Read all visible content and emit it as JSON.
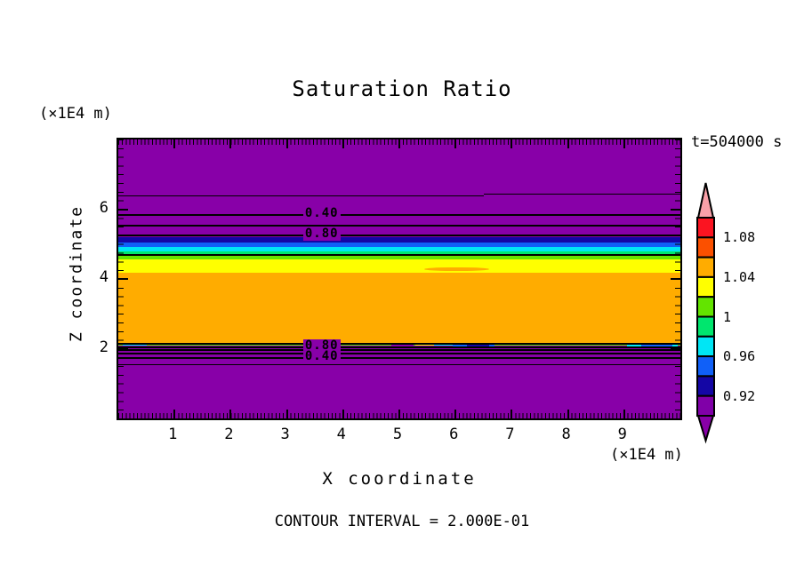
{
  "title": "Saturation Ratio",
  "annotations": {
    "time_label": "t=504000 s",
    "y_unit": "(×1E4 m)",
    "x_unit": "(×1E4 m)",
    "contour_note": "CONTOUR INTERVAL = 2.000E-01"
  },
  "axes": {
    "x_label": "X coordinate",
    "y_label": "Z coordinate",
    "x_ticks": [
      1,
      2,
      3,
      4,
      5,
      6,
      7,
      8,
      9
    ],
    "y_ticks": [
      2,
      4,
      6
    ]
  },
  "chart_data": {
    "type": "heatmap",
    "subtype": "filled-contour",
    "title": "Saturation Ratio",
    "xlabel": "X coordinate (×1E4 m)",
    "ylabel": "Z coordinate (×1E4 m)",
    "x_range": [
      0,
      10
    ],
    "z_range": [
      0,
      8
    ],
    "time": "t=504000 s",
    "contour_interval": 0.2,
    "colorbar_interval": 0.02,
    "bands": [
      {
        "color_name": "purple",
        "color": "#8800A8",
        "z_top": 8.0,
        "z_bottom": 5.2,
        "value": "<0.90"
      },
      {
        "color_name": "navy",
        "color": "#1406A5",
        "z_top": 5.2,
        "z_bottom": 5.05,
        "value": "0.92-0.94"
      },
      {
        "color_name": "blue",
        "color": "#1060F8",
        "z_top": 5.05,
        "z_bottom": 4.92,
        "value": "0.94-0.96"
      },
      {
        "color_name": "cyan",
        "color": "#00E6F5",
        "z_top": 4.92,
        "z_bottom": 4.78,
        "value": "0.96-0.98"
      },
      {
        "color_name": "spring-green",
        "color": "#00E66E",
        "z_top": 4.78,
        "z_bottom": 4.71,
        "value": "0.98-1.00"
      },
      {
        "color_name": "green-yellow",
        "color": "#63E400",
        "z_top": 4.71,
        "z_bottom": 4.55,
        "value": "1.00-1.02"
      },
      {
        "color_name": "yellow",
        "color": "#FFFF00",
        "z_top": 4.55,
        "z_bottom": 4.17,
        "value": "1.02-1.04"
      },
      {
        "color_name": "orange",
        "color": "#FFAC00",
        "z_top": 4.17,
        "z_bottom": 2.17,
        "value": "1.04-1.06"
      },
      {
        "color_name": "green-yellow",
        "color": "#63E400",
        "z_top": 2.17,
        "z_bottom": 2.08,
        "value": "1.00-1.02"
      },
      {
        "color_name": "purple",
        "color": "#8800A8",
        "z_top": 2.08,
        "z_bottom": 0.0,
        "value": "<0.90"
      }
    ],
    "patches": [
      {
        "color_name": "orange",
        "color": "#FFAC00",
        "x_from": 5.45,
        "x_to": 6.6,
        "z_top": 4.34,
        "z_bottom": 4.22,
        "round": true
      },
      {
        "color_name": "cyan",
        "color": "#00E6F5",
        "x_from": 0.08,
        "x_to": 0.5,
        "z_top": 2.16,
        "z_bottom": 2.09,
        "round": false
      },
      {
        "color_name": "yellow",
        "color": "#FFFF00",
        "x_from": 5.28,
        "x_to": 5.62,
        "z_top": 2.17,
        "z_bottom": 2.1,
        "round": false
      },
      {
        "color_name": "purple",
        "color": "#8800A8",
        "x_from": 4.85,
        "x_to": 5.25,
        "z_top": 2.13,
        "z_bottom": 2.1,
        "round": false
      },
      {
        "color_name": "cyan",
        "color": "#00E6F5",
        "x_from": 5.62,
        "x_to": 6.02,
        "z_top": 2.16,
        "z_bottom": 2.08,
        "round": false
      },
      {
        "color_name": "blue",
        "color": "#1060F8",
        "x_from": 5.95,
        "x_to": 6.7,
        "z_top": 2.14,
        "z_bottom": 2.06,
        "round": false
      },
      {
        "color_name": "navy",
        "color": "#1406A5",
        "x_from": 6.2,
        "x_to": 6.6,
        "z_top": 2.11,
        "z_bottom": 2.05,
        "round": false
      },
      {
        "color_name": "cyan",
        "color": "#00E6F5",
        "x_from": 9.05,
        "x_to": 9.95,
        "z_top": 2.15,
        "z_bottom": 2.07,
        "round": false
      },
      {
        "color_name": "blue",
        "color": "#1060F8",
        "x_from": 9.3,
        "x_to": 9.85,
        "z_top": 2.12,
        "z_bottom": 2.05,
        "round": false
      }
    ],
    "contour_lines": [
      {
        "value": 0.2,
        "z": 6.4,
        "x_from": 0.0,
        "x_to": 6.5,
        "weight": 1
      },
      {
        "value": 0.2,
        "z": 6.45,
        "x_from": 6.5,
        "x_to": 10.0,
        "weight": 1
      },
      {
        "value": 0.4,
        "z": 5.86,
        "x_from": 0.0,
        "x_to": 10.0,
        "weight": 2
      },
      {
        "value": 0.6,
        "z": 5.55,
        "x_from": 0.0,
        "x_to": 10.0,
        "weight": 2
      },
      {
        "value": 0.8,
        "z": 5.27,
        "x_from": 0.0,
        "x_to": 10.0,
        "weight": 2
      },
      {
        "value": 1.0,
        "z": 4.72,
        "x_from": 0.0,
        "x_to": 10.0,
        "weight": 2
      },
      {
        "value": 1.0,
        "z": 2.17,
        "x_from": 0.0,
        "x_to": 10.0,
        "weight": 2
      },
      {
        "value": 0.8,
        "z": 2.06,
        "x_from": 0.0,
        "x_to": 10.0,
        "weight": 2
      },
      {
        "value": 0.6,
        "z": 1.98,
        "x_from": 0.0,
        "x_to": 10.0,
        "weight": 2
      },
      {
        "value": 0.4,
        "z": 1.89,
        "x_from": 0.0,
        "x_to": 10.0,
        "weight": 2
      },
      {
        "value": 0.4,
        "z": 1.77,
        "x_from": 0.0,
        "x_to": 10.0,
        "weight": 2
      },
      {
        "value": 0.2,
        "z": 1.55,
        "x_from": 0.0,
        "x_to": 10.0,
        "weight": 1
      }
    ],
    "contour_labels": [
      {
        "text": "0.40",
        "x": 3.59,
        "z": 5.86
      },
      {
        "text": "0.80",
        "x": 3.59,
        "z": 5.27
      },
      {
        "text": "0.80",
        "x": 3.59,
        "z": 2.06
      },
      {
        "text": "0.40",
        "x": 3.59,
        "z": 1.77
      }
    ]
  },
  "colorbar": {
    "over_color": "#F9A0A8",
    "under_color": "#8800A8",
    "segments": [
      {
        "color_name": "red",
        "color": "#FB1421",
        "range": "1.08-1.10"
      },
      {
        "color_name": "orange-red",
        "color": "#FB5000",
        "range": "1.06-1.08"
      },
      {
        "color_name": "orange",
        "color": "#FFAC00",
        "range": "1.04-1.06"
      },
      {
        "color_name": "yellow",
        "color": "#FFFF00",
        "range": "1.02-1.04"
      },
      {
        "color_name": "green-yellow",
        "color": "#63E400",
        "range": "1.00-1.02"
      },
      {
        "color_name": "spring-green",
        "color": "#00E66E",
        "range": "0.98-1.00"
      },
      {
        "color_name": "cyan",
        "color": "#00E6F5",
        "range": "0.96-0.98"
      },
      {
        "color_name": "blue",
        "color": "#1060F8",
        "range": "0.94-0.96"
      },
      {
        "color_name": "navy",
        "color": "#1406A5",
        "range": "0.92-0.94"
      },
      {
        "color_name": "purple",
        "color": "#8000A8",
        "range": "0.90-0.92"
      }
    ],
    "labels": [
      {
        "text": "1.08",
        "after_segment": 1
      },
      {
        "text": "1.04",
        "after_segment": 3
      },
      {
        "text": "1",
        "after_segment": 5
      },
      {
        "text": "0.96",
        "after_segment": 7
      },
      {
        "text": "0.92",
        "after_segment": 9
      }
    ]
  }
}
